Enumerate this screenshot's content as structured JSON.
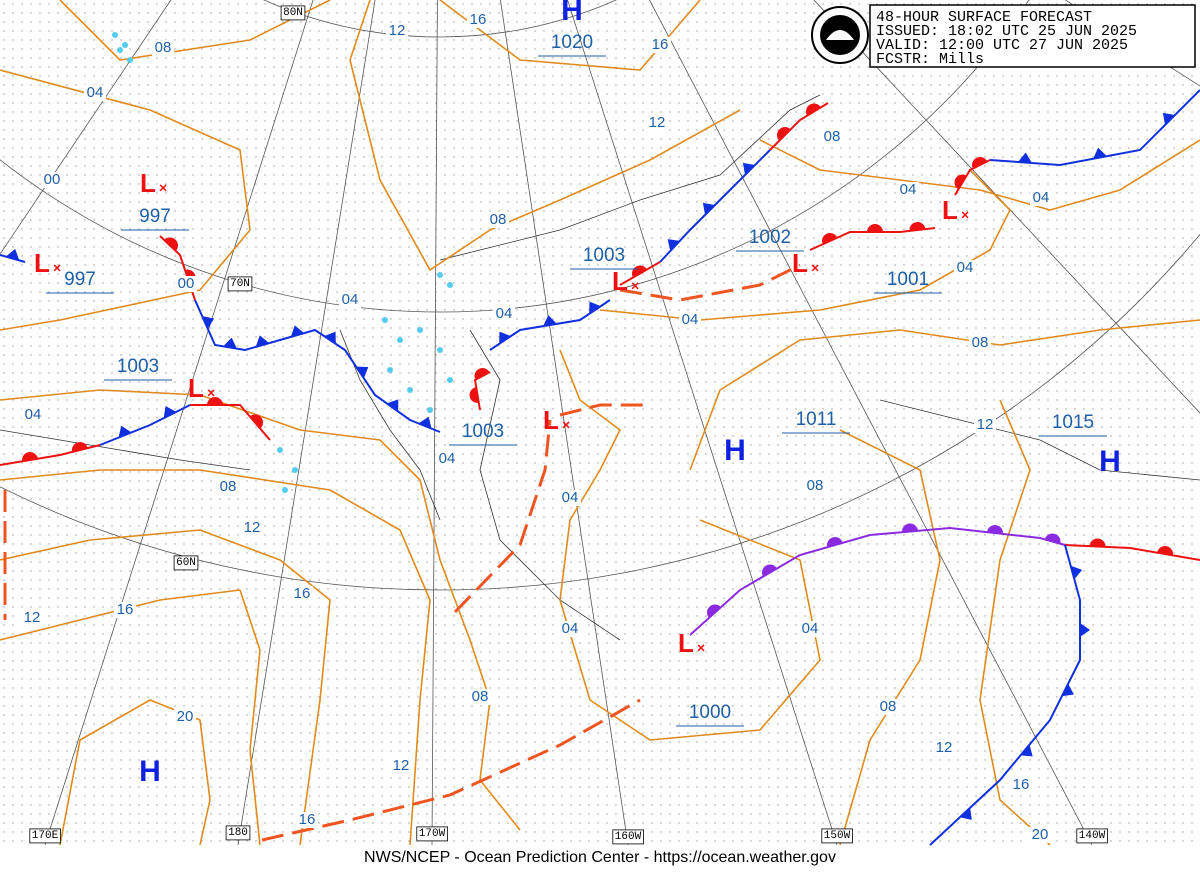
{
  "header": {
    "product": "48-HOUR SURFACE FORECAST",
    "issued": "ISSUED: 18:02 UTC 25 JUN 2025",
    "valid": "VALID:  12:00 UTC 27 JUN 2025",
    "forecaster": "FCSTR:  Mills"
  },
  "footer": "NWS/NCEP - Ocean Prediction Center - https://ocean.weather.gov",
  "centers": [
    "H",
    "L",
    "L",
    "L",
    "L",
    "L",
    "L",
    "L",
    "H",
    "H",
    "L",
    "H"
  ],
  "pressure_labels": [
    "1020",
    "997",
    "997",
    "1003",
    "1002",
    "1001",
    "1003",
    "1003",
    "1011",
    "1015",
    "1000"
  ],
  "isobar_labels": [
    "08",
    "04",
    "12",
    "16",
    "16",
    "12",
    "08",
    "04",
    "04",
    "04",
    "00",
    "08",
    "00",
    "04",
    "04",
    "04",
    "08",
    "04",
    "12",
    "04",
    "04",
    "08",
    "12",
    "08",
    "12",
    "16",
    "16",
    "04",
    "04",
    "20",
    "08",
    "08",
    "12",
    "12",
    "16",
    "16",
    "20"
  ],
  "grid_labels": [
    "80N",
    "70N",
    "60N",
    "170E",
    "180",
    "170W",
    "160W",
    "150W",
    "140W"
  ]
}
